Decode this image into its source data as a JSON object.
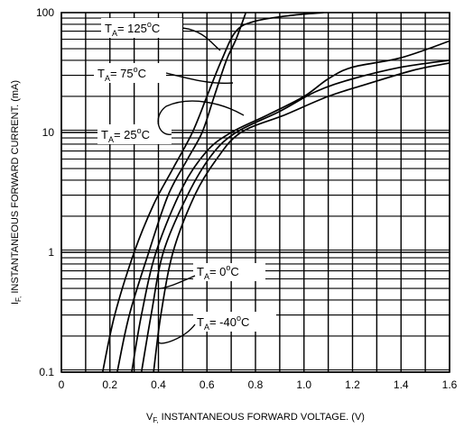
{
  "chart_data": {
    "type": "line",
    "x_axis": {
      "symbol": "V",
      "subscript": "F,",
      "label": "INSTANTANEOUS FORWARD VOLTAGE. (V)",
      "range": [
        0,
        1.6
      ],
      "ticks": [
        0,
        0.2,
        0.4,
        0.6,
        0.8,
        1.0,
        1.2,
        1.4,
        1.6
      ],
      "tick_labels": [
        "0",
        "0.2",
        "0.4",
        "0.6",
        "0.8",
        "1.0",
        "1.2",
        "1.4",
        "1.6"
      ],
      "major_step": 0.2,
      "minor_step": 0.1
    },
    "y_axis": {
      "symbol": "I",
      "subscript": "F,",
      "label": "INSTANTANEOUS FORWARD CURRENT. (mA)",
      "scale": "log",
      "range": [
        0.1,
        100
      ],
      "ticks": [
        0.1,
        1,
        10,
        100
      ],
      "tick_labels": [
        "0.1",
        "1",
        "10",
        "100"
      ]
    },
    "grid": true,
    "series": [
      {
        "name": "TA= 125°C",
        "label": {
          "prefix": "T",
          "sub": "A",
          "text": "= 125",
          "sup": "o",
          "unit": "C"
        },
        "points": [
          [
            0.17,
            0.1
          ],
          [
            0.22,
            0.3
          ],
          [
            0.3,
            1.0
          ],
          [
            0.38,
            2.5
          ],
          [
            0.46,
            5
          ],
          [
            0.54,
            10
          ],
          [
            0.6,
            20
          ],
          [
            0.66,
            40
          ],
          [
            0.72,
            70
          ],
          [
            0.8,
            85
          ],
          [
            0.95,
            95
          ],
          [
            1.08,
            100
          ]
        ]
      },
      {
        "name": "TA= 75°C",
        "label": {
          "prefix": "T",
          "sub": "A",
          "text": "= 75",
          "sup": "o",
          "unit": "C"
        },
        "points": [
          [
            0.23,
            0.1
          ],
          [
            0.28,
            0.3
          ],
          [
            0.36,
            1.0
          ],
          [
            0.44,
            3
          ],
          [
            0.52,
            6
          ],
          [
            0.58,
            10
          ],
          [
            0.63,
            20
          ],
          [
            0.68,
            40
          ],
          [
            0.72,
            60
          ],
          [
            0.76,
            100
          ]
        ]
      },
      {
        "name": "TA= 25°C",
        "label": {
          "prefix": "T",
          "sub": "A",
          "text": "= 25",
          "sup": "o",
          "unit": "C"
        },
        "points": [
          [
            0.29,
            0.1
          ],
          [
            0.33,
            0.3
          ],
          [
            0.39,
            1.0
          ],
          [
            0.5,
            3.5
          ],
          [
            0.6,
            7
          ],
          [
            0.7,
            10
          ],
          [
            0.85,
            14
          ],
          [
            1.0,
            20
          ],
          [
            1.1,
            28
          ],
          [
            1.2,
            35
          ],
          [
            1.4,
            42
          ],
          [
            1.6,
            58
          ]
        ]
      },
      {
        "name": "TA= 0°C",
        "label": {
          "prefix": "T",
          "sub": "A",
          "text": "= 0",
          "sup": "o",
          "unit": "C"
        },
        "points": [
          [
            0.33,
            0.1
          ],
          [
            0.37,
            0.3
          ],
          [
            0.42,
            1.0
          ],
          [
            0.52,
            3
          ],
          [
            0.62,
            6.5
          ],
          [
            0.72,
            10
          ],
          [
            0.9,
            15
          ],
          [
            1.05,
            22
          ],
          [
            1.2,
            28
          ],
          [
            1.4,
            35
          ],
          [
            1.6,
            40
          ]
        ]
      },
      {
        "name": "TA= -40°C",
        "label": {
          "prefix": "T",
          "sub": "A",
          "text": "= -40",
          "sup": "o",
          "unit": "C"
        },
        "points": [
          [
            0.38,
            0.1
          ],
          [
            0.41,
            0.3
          ],
          [
            0.46,
            1.0
          ],
          [
            0.55,
            3
          ],
          [
            0.64,
            6
          ],
          [
            0.74,
            10
          ],
          [
            0.92,
            14
          ],
          [
            1.1,
            20
          ],
          [
            1.25,
            25
          ],
          [
            1.45,
            33
          ],
          [
            1.6,
            38
          ]
        ]
      }
    ]
  }
}
